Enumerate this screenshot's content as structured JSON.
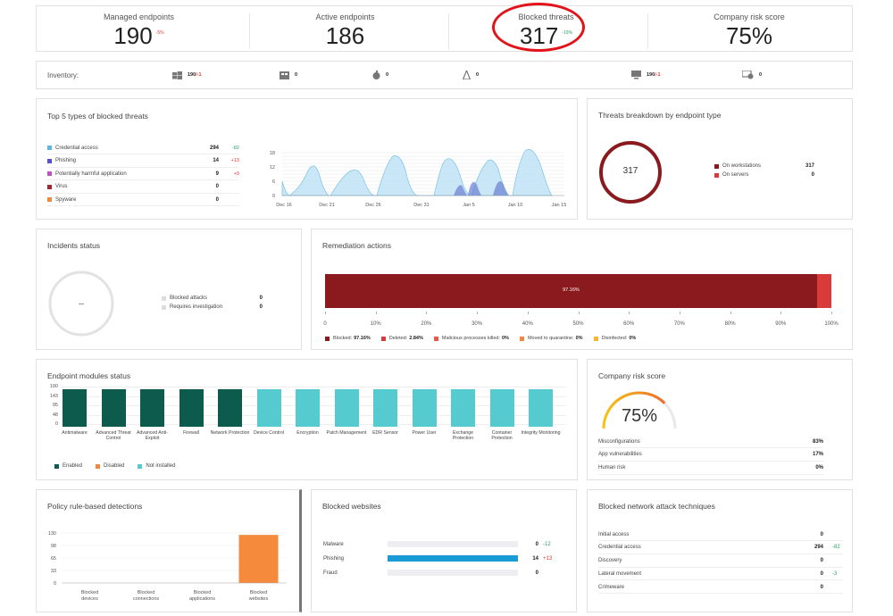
{
  "kpis": [
    {
      "label": "Managed endpoints",
      "value": "190",
      "delta": "-5%",
      "delta_color": "red"
    },
    {
      "label": "Active endpoints",
      "value": "186",
      "delta": "",
      "delta_color": ""
    },
    {
      "label": "Blocked threats",
      "value": "317",
      "delta": "-19%",
      "delta_color": "green"
    },
    {
      "label": "Company risk score",
      "value": "75%",
      "delta": "",
      "delta_color": ""
    }
  ],
  "inventory": {
    "label": "Inventory:",
    "items": [
      {
        "icon": "windows-icon",
        "value": "190",
        "delta": "/-1"
      },
      {
        "icon": "windows-server-icon",
        "value": "0",
        "delta": ""
      },
      {
        "icon": "apple-icon",
        "value": "0",
        "delta": ""
      },
      {
        "icon": "linux-icon",
        "value": "0",
        "delta": ""
      },
      {
        "icon": "monitor-icon",
        "value": "190",
        "delta": "/-1"
      },
      {
        "icon": "virtual-machine-icon",
        "value": "0",
        "delta": ""
      }
    ]
  },
  "top5": {
    "title": "Top 5 types of blocked threats",
    "items": [
      {
        "label": "Credential access",
        "value": "294",
        "delta": "-82",
        "color": "#5bb8e6",
        "delta_color": "green"
      },
      {
        "label": "Phishing",
        "value": "14",
        "delta": "+13",
        "color": "#5a4fcf",
        "delta_color": "red"
      },
      {
        "label": "Potentially harmful application",
        "value": "9",
        "delta": "+9",
        "color": "#c24fc4",
        "delta_color": "red"
      },
      {
        "label": "Virus",
        "value": "0",
        "delta": "",
        "color": "#a0282d",
        "delta_color": ""
      },
      {
        "label": "Spyware",
        "value": "0",
        "delta": "",
        "color": "#f0883e",
        "delta_color": ""
      }
    ],
    "chart": {
      "yticks": [
        "18",
        "12",
        "6",
        "0"
      ],
      "xticks": [
        "Dec 16",
        "Dec 21",
        "Dec 26",
        "Dec 31",
        "Jan 5",
        "Jan 10",
        "Jan 15"
      ]
    }
  },
  "breakdown": {
    "title": "Threats breakdown by endpoint type",
    "center": "317",
    "items": [
      {
        "label": "On workstations",
        "value": "317",
        "color": "#8b1a1f"
      },
      {
        "label": "On servers",
        "value": "0",
        "color": "#d93a3a"
      }
    ]
  },
  "incidents": {
    "title": "Incidents status",
    "center": "--",
    "items": [
      {
        "label": "Blocked attacks",
        "value": "0"
      },
      {
        "label": "Requires investigation",
        "value": "0"
      }
    ]
  },
  "remediation": {
    "title": "Remediation actions",
    "bar_label": "97.16%",
    "blocked_pct": 97.16,
    "deleted_pct": 2.84,
    "xticks": [
      "0",
      "10%",
      "20%",
      "30%",
      "40%",
      "50%",
      "60%",
      "70%",
      "80%",
      "90%",
      "100%"
    ],
    "legend": [
      {
        "label": "Blocked:",
        "value": "97.16%",
        "color": "#8b1a1f"
      },
      {
        "label": "Deleted:",
        "value": "2.84%",
        "color": "#d93a3a"
      },
      {
        "label": "Malicious processes killed:",
        "value": "0%",
        "color": "#e05a4e"
      },
      {
        "label": "Moved to quarantine:",
        "value": "0%",
        "color": "#f0883e"
      },
      {
        "label": "Disinfected:",
        "value": "0%",
        "color": "#f5b731"
      }
    ]
  },
  "modules": {
    "title": "Endpoint modules status",
    "yticks": [
      "190",
      "143",
      "95",
      "48",
      "0"
    ],
    "bars": [
      {
        "label": "Antimalware",
        "status": "enabled"
      },
      {
        "label": "Advanced Threat Control",
        "status": "enabled"
      },
      {
        "label": "Advanced Anti-Exploit",
        "status": "enabled"
      },
      {
        "label": "Firewall",
        "status": "enabled"
      },
      {
        "label": "Network Protection",
        "status": "enabled"
      },
      {
        "label": "Device Control",
        "status": "not"
      },
      {
        "label": "Encryption",
        "status": "not"
      },
      {
        "label": "Patch Management",
        "status": "not"
      },
      {
        "label": "EDR Sensor",
        "status": "not"
      },
      {
        "label": "Power User",
        "status": "not"
      },
      {
        "label": "Exchange Protection",
        "status": "not"
      },
      {
        "label": "Container Protection",
        "status": "not"
      },
      {
        "label": "Integrity Monitoring",
        "status": "not"
      }
    ],
    "legend": [
      {
        "label": "Enabled",
        "color": "#0d5b4c"
      },
      {
        "label": "Disabled",
        "color": "#f0883e"
      },
      {
        "label": "Not installed",
        "color": "#55cbd0"
      }
    ]
  },
  "risk": {
    "title": "Company risk score",
    "value": "75%",
    "score": 75,
    "items": [
      {
        "label": "Misconfigurations",
        "value": "83%"
      },
      {
        "label": "App vulnerabilities",
        "value": "17%"
      },
      {
        "label": "Human risk",
        "value": "0%"
      }
    ]
  },
  "policy": {
    "title": "Policy rule-based detections",
    "yticks": [
      "130",
      "98",
      "65",
      "33",
      "0"
    ],
    "ymax": 130,
    "categories": [
      "Blocked devices",
      "Blocked connections",
      "Blocked applications",
      "Blocked websites"
    ],
    "values": [
      0,
      0,
      0,
      125
    ]
  },
  "websites": {
    "title": "Blocked websites",
    "max": 14,
    "items": [
      {
        "label": "Malware",
        "value": "0",
        "num": 0,
        "delta": "-12",
        "delta_color": "green"
      },
      {
        "label": "Phishing",
        "value": "14",
        "num": 14,
        "delta": "+13",
        "delta_color": "red"
      },
      {
        "label": "Fraud",
        "value": "0",
        "num": 0,
        "delta": "",
        "delta_color": ""
      }
    ]
  },
  "network": {
    "title": "Blocked network attack techniques",
    "items": [
      {
        "label": "Initial access",
        "value": "0",
        "delta": "",
        "delta_color": ""
      },
      {
        "label": "Credential access",
        "value": "294",
        "delta": "-82",
        "delta_color": "green"
      },
      {
        "label": "Discovery",
        "value": "0",
        "delta": "",
        "delta_color": ""
      },
      {
        "label": "Lateral movement",
        "value": "0",
        "delta": "-3",
        "delta_color": "green"
      },
      {
        "label": "Crimeware",
        "value": "0",
        "delta": "",
        "delta_color": ""
      }
    ]
  }
}
